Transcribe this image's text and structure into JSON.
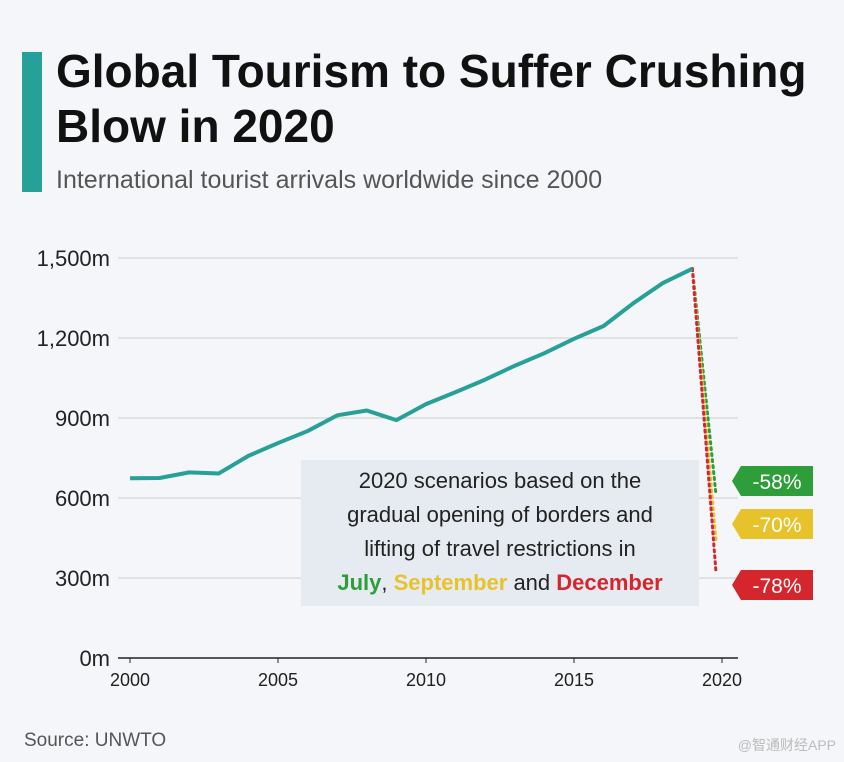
{
  "header": {
    "title": "Global Tourism to Suffer Crushing Blow in 2020",
    "subtitle": "International tourist arrivals worldwide since 2000"
  },
  "footer": {
    "source": "Source: UNWTO",
    "watermark": "@智通财经APP"
  },
  "annotation": {
    "line1": "2020 scenarios based on the",
    "line2": "gradual opening of borders and",
    "line3": "lifting of travel restrictions in",
    "july": "July",
    "sep": ", ",
    "september": "September",
    "and": " and ",
    "december": "December"
  },
  "colors": {
    "line": "#26a099",
    "july": "#2e9e3a",
    "september": "#e8c22a",
    "december": "#d4262c",
    "grid": "#cccccc"
  },
  "chart_data": {
    "type": "line",
    "title": "Global Tourism to Suffer Crushing Blow in 2020",
    "subtitle": "International tourist arrivals worldwide since 2000",
    "ylim": [
      0,
      1500
    ],
    "xlim": [
      2000,
      2020
    ],
    "yticks": [
      0,
      300,
      600,
      900,
      1200,
      1500
    ],
    "ytick_labels": [
      "0m",
      "300m",
      "600m",
      "900m",
      "1,200m",
      "1,500m"
    ],
    "xticks": [
      2000,
      2005,
      2010,
      2015,
      2020
    ],
    "xtick_labels": [
      "2000",
      "2005",
      "2010",
      "2015",
      "2020"
    ],
    "grid": true,
    "series": [
      {
        "x": [
          2000,
          2001,
          2002,
          2003,
          2004,
          2005,
          2006,
          2007,
          2008,
          2009,
          2010,
          2011,
          2012,
          2013,
          2014,
          2015,
          2016,
          2017,
          2018,
          2019
        ],
        "values": [
          674,
          675,
          696,
          692,
          758,
          806,
          851,
          910,
          928,
          892,
          952,
          997,
          1044,
          1096,
          1143,
          1197,
          1245,
          1330,
          1406,
          1460
        ]
      }
    ],
    "scenarios": [
      {
        "month": "July",
        "label": "-58%",
        "x": 2020,
        "value": 613,
        "color": "#2e9e3a"
      },
      {
        "month": "September",
        "label": "-70%",
        "x": 2020,
        "value": 438,
        "color": "#e8c22a"
      },
      {
        "month": "December",
        "label": "-78%",
        "x": 2020,
        "value": 321,
        "color": "#d4262c"
      }
    ]
  }
}
